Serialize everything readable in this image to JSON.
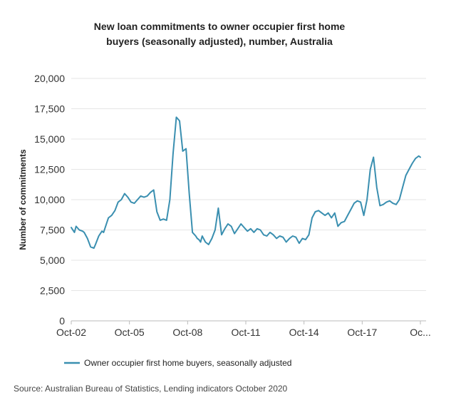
{
  "chart_data": {
    "type": "line",
    "title_line1": "New loan commitments to owner occupier first home",
    "title_line2": "buyers (seasonally adjusted), number, Australia",
    "ylabel": "Number of commitments",
    "xlabel": "",
    "ylim": [
      0,
      20000
    ],
    "yticks": [
      0,
      2500,
      5000,
      7500,
      10000,
      12500,
      15000,
      17500,
      20000
    ],
    "ytick_labels": [
      "0",
      "2,500",
      "5,000",
      "7,500",
      "10,000",
      "12,500",
      "15,000",
      "17,500",
      "20,000"
    ],
    "xtick_labels": [
      "Oct-02",
      "Oct-05",
      "Oct-08",
      "Oct-11",
      "Oct-14",
      "Oct-17",
      "Oc..."
    ],
    "xtick_dates": [
      "2002-10",
      "2005-10",
      "2008-10",
      "2011-10",
      "2014-10",
      "2017-10",
      "2020-10"
    ],
    "grid": true,
    "legend_position": "bottom-left",
    "line_color": "#3a8fb0",
    "series": [
      {
        "name": "Owner occupier first home buyers, seasonally adjusted",
        "x": [
          "2002-10",
          "2002-12",
          "2003-01",
          "2003-03",
          "2003-05",
          "2003-06",
          "2003-08",
          "2003-10",
          "2003-12",
          "2004-01",
          "2004-03",
          "2004-05",
          "2004-06",
          "2004-08",
          "2004-09",
          "2004-11",
          "2005-01",
          "2005-03",
          "2005-05",
          "2005-07",
          "2005-09",
          "2005-11",
          "2006-01",
          "2006-03",
          "2006-05",
          "2006-07",
          "2006-09",
          "2006-11",
          "2007-01",
          "2007-03",
          "2007-05",
          "2007-07",
          "2007-09",
          "2007-11",
          "2008-01",
          "2008-03",
          "2008-05",
          "2008-07",
          "2008-09",
          "2008-11",
          "2009-01",
          "2009-03",
          "2009-04",
          "2009-05",
          "2009-06",
          "2009-07",
          "2009-09",
          "2009-11",
          "2010-01",
          "2010-03",
          "2010-05",
          "2010-07",
          "2010-09",
          "2010-11",
          "2011-01",
          "2011-03",
          "2011-05",
          "2011-07",
          "2011-09",
          "2011-11",
          "2012-01",
          "2012-03",
          "2012-05",
          "2012-07",
          "2012-09",
          "2012-11",
          "2013-01",
          "2013-03",
          "2013-05",
          "2013-07",
          "2013-09",
          "2013-11",
          "2014-01",
          "2014-03",
          "2014-05",
          "2014-07",
          "2014-09",
          "2014-11",
          "2015-01",
          "2015-03",
          "2015-05",
          "2015-07",
          "2015-09",
          "2015-11",
          "2016-01",
          "2016-03",
          "2016-05",
          "2016-07",
          "2016-09",
          "2016-11",
          "2017-01",
          "2017-03",
          "2017-05",
          "2017-07",
          "2017-09",
          "2017-11",
          "2018-01",
          "2018-03",
          "2018-05",
          "2018-07",
          "2018-09",
          "2018-11",
          "2019-01",
          "2019-03",
          "2019-05",
          "2019-07",
          "2019-09",
          "2019-11",
          "2020-01",
          "2020-03",
          "2020-05",
          "2020-07",
          "2020-08",
          "2020-09",
          "2020-10"
        ],
        "values": [
          7700,
          7300,
          7800,
          7500,
          7400,
          7300,
          6800,
          6100,
          6000,
          6300,
          7000,
          7400,
          7300,
          8100,
          8500,
          8700,
          9100,
          9800,
          10000,
          10500,
          10200,
          9800,
          9700,
          10000,
          10300,
          10200,
          10300,
          10600,
          10800,
          9000,
          8300,
          8400,
          8300,
          10000,
          13800,
          16800,
          16500,
          14000,
          14200,
          10500,
          7300,
          7000,
          6800,
          6700,
          6500,
          7000,
          6500,
          6300,
          6800,
          7500,
          9300,
          7100,
          7600,
          8000,
          7800,
          7200,
          7600,
          8000,
          7700,
          7400,
          7600,
          7300,
          7600,
          7500,
          7100,
          7000,
          7300,
          7100,
          6800,
          7000,
          6900,
          6500,
          6800,
          7000,
          6900,
          6400,
          6800,
          6700,
          7100,
          8500,
          9000,
          9100,
          8900,
          8700,
          8900,
          8500,
          8900,
          7800,
          8100,
          8200,
          8700,
          9200,
          9700,
          9900,
          9800,
          8700,
          10000,
          12500,
          13500,
          11000,
          9500,
          9600,
          9800,
          9900,
          9700,
          9600,
          10000,
          11000,
          12000,
          12500,
          13000,
          13400,
          13500,
          13600,
          13500
        ]
      }
    ],
    "source": "Source: Australian Bureau of Statistics, Lending indicators October 2020"
  }
}
